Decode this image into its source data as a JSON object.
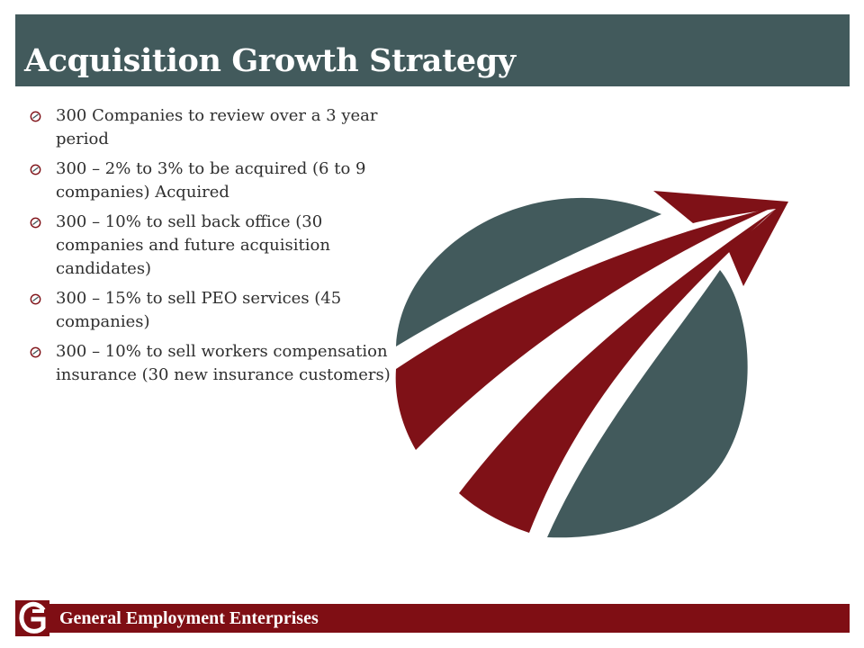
{
  "slide": {
    "title": "Acquisition Growth Strategy",
    "bullets": [
      {
        "text": "300 Companies to review over a 3 year period"
      },
      {
        "text": "300 – 2% to 3% to be acquired (6 to 9 companies) Acquired"
      },
      {
        "text": "300 – 10% to sell back office  (30 companies and future acquisition candidates)"
      },
      {
        "text": "300 – 15% to sell PEO services (45 companies)"
      },
      {
        "text": "300 – 10% to sell workers compensation insurance (30 new insurance customers)"
      }
    ],
    "bullet_icon": "circle-arrow-bullet-icon"
  },
  "graphic": {
    "icon": "growth-arrow-globe-icon",
    "colors": {
      "teal": "#425a5c",
      "red": "#7f1117"
    }
  },
  "footer": {
    "company_name": "General Employment  Enterprises",
    "logo_icon": "company-logo-g-icon",
    "colors": {
      "bar": "#7f0e14",
      "text": "#ffffff"
    }
  }
}
